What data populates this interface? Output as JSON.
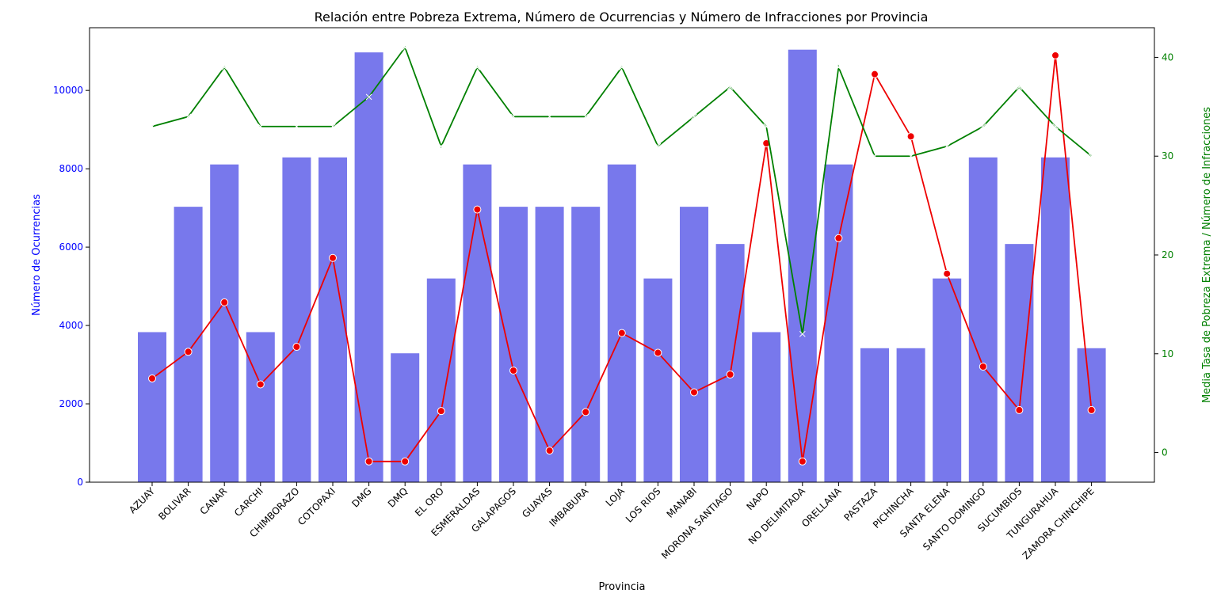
{
  "chart_data": {
    "type": "bar",
    "title": "Relación entre Pobreza Extrema, Número de Ocurrencias y Número de Infracciones por Provincia",
    "xlabel": "Provincia",
    "ylabel": "Número de Ocurrencias",
    "ylabel_right": "Media Tasa de Pobreza Extrema / Número de Infracciones",
    "ylim": [
      0,
      11600
    ],
    "ylim_right": [
      -3,
      43
    ],
    "yticks": [
      0,
      2000,
      4000,
      6000,
      8000,
      10000
    ],
    "yticks_right": [
      0,
      10,
      20,
      30,
      40
    ],
    "grid": false,
    "categories": [
      "AZUAY",
      "BOLIVAR",
      "CANAR",
      "CARCHI",
      "CHIMBORAZO",
      "COTOPAXI",
      "DMG",
      "DMQ",
      "EL ORO",
      "ESMERALDAS",
      "GALAPAGOS",
      "GUAYAS",
      "IMBABURA",
      "LOJA",
      "LOS RIOS",
      "MANABI",
      "MORONA SANTIAGO",
      "NAPO",
      "NO DELIMITADA",
      "ORELLANA",
      "PASTAZA",
      "PICHINCHA",
      "SANTA ELENA",
      "SANTO DOMINGO",
      "SUCUMBIOS",
      "TUNGURAHUA",
      "ZAMORA CHINCHIPE"
    ],
    "series": [
      {
        "axis": "left",
        "kind": "bar",
        "color": "#7878ec",
        "values": [
          3830,
          7030,
          8110,
          3830,
          8290,
          8290,
          10970,
          3290,
          5200,
          8110,
          7030,
          7030,
          7030,
          8110,
          5200,
          7030,
          6080,
          3830,
          11040,
          8110,
          3420,
          3420,
          5200,
          8290,
          6080,
          8290,
          3420
        ]
      },
      {
        "axis": "right",
        "kind": "line",
        "marker": "circle",
        "color": "#ee0000",
        "values": [
          7.5,
          10.2,
          15.2,
          6.9,
          10.7,
          19.7,
          -0.9,
          -0.9,
          4.2,
          24.6,
          8.3,
          0.2,
          4.1,
          12.1,
          10.1,
          6.1,
          7.9,
          31.3,
          -0.9,
          21.7,
          38.3,
          32.0,
          18.1,
          8.7,
          4.3,
          40.2,
          4.3
        ]
      },
      {
        "axis": "right",
        "kind": "line",
        "marker": "x",
        "color": "#008000",
        "values": [
          33,
          34,
          39,
          33,
          33,
          33,
          36,
          41,
          31,
          39,
          34,
          34,
          34,
          39,
          31,
          34,
          37,
          33,
          12,
          39,
          30,
          30,
          31,
          33,
          37,
          33,
          30
        ]
      }
    ],
    "colors": {
      "left_axis": "#0000ff",
      "right_axis": "#008000"
    }
  }
}
